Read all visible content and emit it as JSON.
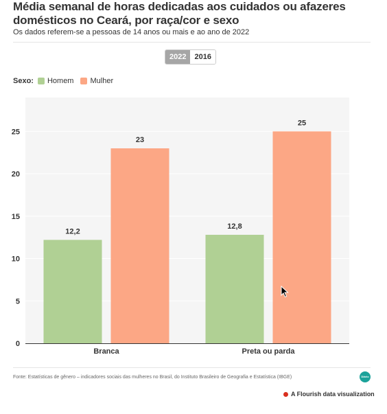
{
  "title": "Média semanal de horas dedicadas aos cuidados ou afazeres domésticos no Ceará, por raça/cor e sexo",
  "subtitle": "Os dados referem-se a pessoas de 14 anos ou mais e ao ano de 2022",
  "year_toggle": {
    "options": [
      "2022",
      "2016"
    ],
    "selected": "2022"
  },
  "legend": {
    "label": "Sexo:",
    "items": [
      "Homem",
      "Mulher"
    ]
  },
  "colors": {
    "Homem": "#b0d094",
    "Mulher": "#fca785",
    "plot_bg": "#f5f5f5"
  },
  "chart_data": {
    "type": "bar",
    "categories": [
      "Branca",
      "Preta ou parda"
    ],
    "series": [
      {
        "name": "Homem",
        "values": [
          12.2,
          12.8
        ],
        "labels": [
          "12,2",
          "12,8"
        ]
      },
      {
        "name": "Mulher",
        "values": [
          23,
          25
        ],
        "labels": [
          "23",
          "25"
        ]
      }
    ],
    "ylim": [
      0,
      29
    ],
    "yticks": [
      0,
      5,
      10,
      15,
      20,
      25
    ],
    "xlabel": "",
    "ylabel": "",
    "grid": true,
    "legend_position": "top-left"
  },
  "footer": {
    "source": "Fonte: Estatísticas de gênero – indicadores sociais das mulheres no Brasil, do Instituto Brasileiro de Geografia e Estatística (IBGE)",
    "badge": "Diário",
    "flourish": "A Flourish data visualization"
  }
}
